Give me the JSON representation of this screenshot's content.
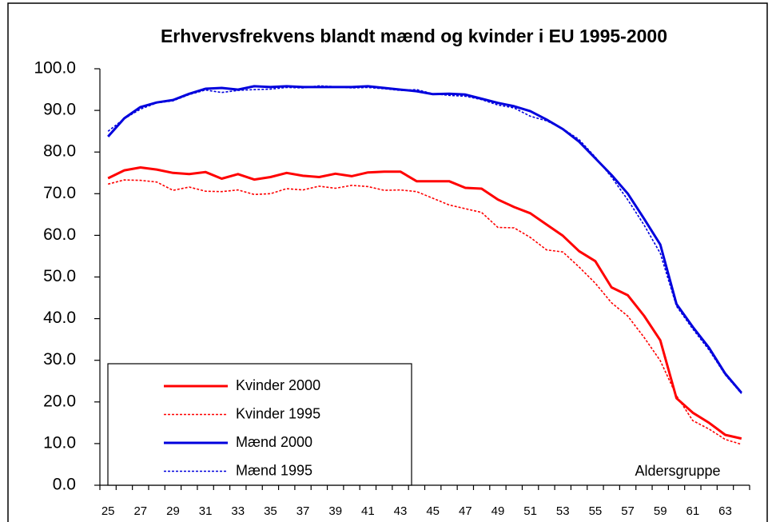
{
  "chart_data": {
    "type": "line",
    "title": "Erhvervsfrekvens blandt mænd og kvinder i EU 1995-2000",
    "x_label": "Aldersgruppe",
    "categories": [
      "25",
      null,
      "27",
      null,
      "29",
      null,
      "31",
      null,
      "33",
      null,
      "35",
      null,
      "37",
      null,
      "39",
      null,
      "41",
      null,
      "43",
      null,
      "45",
      null,
      "47",
      null,
      "49",
      null,
      "51",
      null,
      "53",
      null,
      "55",
      null,
      "57",
      null,
      "59",
      null,
      "61",
      null,
      "63",
      null
    ],
    "ylim": [
      0,
      100
    ],
    "yticks": [
      {
        "value": 0,
        "label": "0.0"
      },
      {
        "value": 10,
        "label": "10.0"
      },
      {
        "value": 20,
        "label": "20.0"
      },
      {
        "value": 30,
        "label": "30.0"
      },
      {
        "value": 40,
        "label": "40.0"
      },
      {
        "value": 50,
        "label": "50.0"
      },
      {
        "value": 60,
        "label": "60.0"
      },
      {
        "value": 70,
        "label": "70.0"
      },
      {
        "value": 80,
        "label": "80.0"
      },
      {
        "value": 90,
        "label": "90.0"
      },
      {
        "value": 100,
        "label": "100.0"
      }
    ],
    "grid": false,
    "legend": "lower-left",
    "series": [
      {
        "name": "Kvinder 2000",
        "color": "#ff0000",
        "line_style": "solid",
        "values": [
          73.7,
          75.6,
          76.3,
          75.8,
          75.0,
          74.7,
          75.2,
          73.6,
          74.7,
          73.4,
          74.0,
          75.0,
          74.3,
          74.0,
          74.8,
          74.2,
          75.1,
          75.3,
          75.3,
          73.0,
          73.0,
          73.0,
          71.4,
          71.2,
          68.6,
          66.8,
          65.3,
          62.6,
          59.9,
          56.2,
          53.8,
          47.5,
          45.6,
          40.7,
          34.8,
          20.9,
          17.4,
          15.0,
          12.1,
          11.2
        ]
      },
      {
        "name": "Kvinder 1995",
        "color": "#ff0000",
        "line_style": "dotted",
        "values": [
          72.3,
          73.3,
          73.2,
          72.8,
          70.8,
          71.6,
          70.6,
          70.5,
          70.9,
          69.8,
          70.0,
          71.2,
          70.9,
          71.8,
          71.3,
          72.0,
          71.7,
          70.8,
          70.9,
          70.5,
          68.9,
          67.3,
          66.4,
          65.5,
          61.9,
          61.8,
          59.5,
          56.5,
          56.0,
          52.4,
          48.5,
          43.8,
          40.6,
          35.5,
          29.9,
          21.5,
          15.5,
          13.5,
          11.0,
          9.8
        ]
      },
      {
        "name": "Mænd 2000",
        "color": "#0000dd",
        "line_style": "solid",
        "values": [
          83.7,
          88.1,
          90.8,
          91.9,
          92.5,
          94.0,
          95.2,
          95.4,
          95.0,
          95.8,
          95.6,
          95.8,
          95.6,
          95.6,
          95.6,
          95.6,
          95.8,
          95.4,
          95.0,
          94.6,
          93.9,
          94.0,
          93.8,
          92.8,
          91.8,
          91.0,
          89.8,
          87.8,
          85.5,
          82.5,
          78.5,
          74.5,
          70.0,
          64.0,
          57.8,
          43.5,
          38.0,
          33.0,
          26.8,
          22.2
        ]
      },
      {
        "name": "Mænd 1995",
        "color": "#0000dd",
        "line_style": "dotted",
        "values": [
          85.0,
          88.0,
          90.3,
          91.8,
          92.3,
          93.8,
          94.9,
          94.3,
          94.8,
          95.0,
          95.1,
          95.5,
          95.4,
          95.9,
          95.7,
          95.4,
          95.5,
          95.2,
          94.8,
          95.0,
          94.0,
          93.6,
          93.4,
          92.6,
          91.3,
          90.6,
          88.6,
          87.5,
          85.6,
          83.0,
          78.8,
          74.0,
          68.5,
          62.5,
          55.7,
          43.0,
          37.5,
          32.5,
          26.5,
          22.0
        ]
      }
    ]
  }
}
